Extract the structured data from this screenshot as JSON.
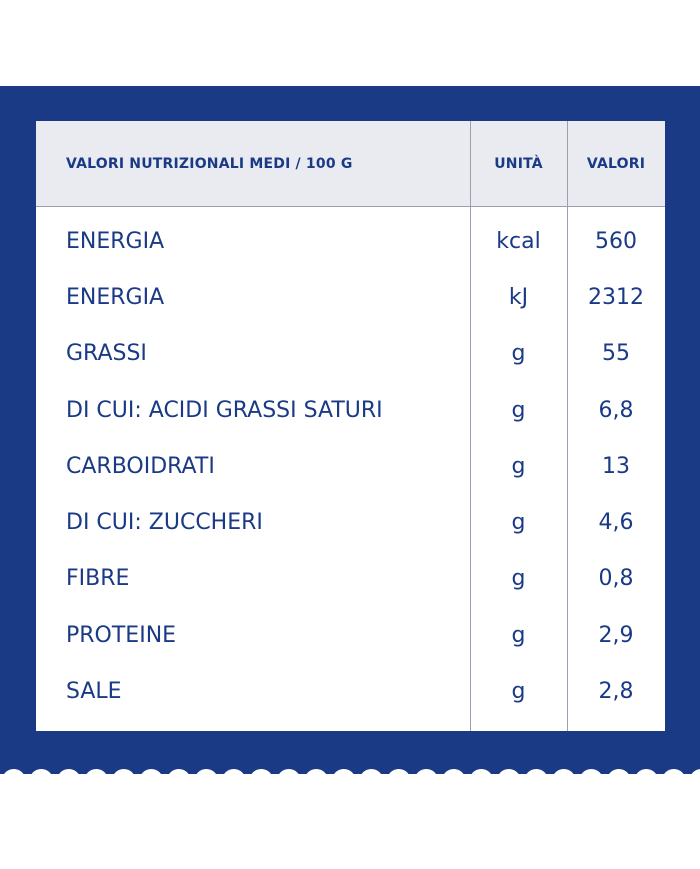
{
  "colors": {
    "brand_blue": "#1a3a86",
    "header_bg": "#e9ebf1",
    "background": "#ffffff"
  },
  "table": {
    "header": {
      "name": "VALORI NUTRIZIONALI MEDI / 100 G",
      "unit": "UNITÀ",
      "value": "VALORI"
    },
    "rows": [
      {
        "name": "ENERGIA",
        "unit": "kcal",
        "value": "560"
      },
      {
        "name": "ENERGIA",
        "unit": "kJ",
        "value": "2312"
      },
      {
        "name": "GRASSI",
        "unit": "g",
        "value": "55"
      },
      {
        "name": "DI CUI: ACIDI GRASSI SATURI",
        "unit": "g",
        "value": "6,8"
      },
      {
        "name": "CARBOIDRATI",
        "unit": "g",
        "value": "13"
      },
      {
        "name": "DI CUI: ZUCCHERI",
        "unit": "g",
        "value": "4,6"
      },
      {
        "name": "FIBRE",
        "unit": "g",
        "value": "0,8"
      },
      {
        "name": "PROTEINE",
        "unit": "g",
        "value": "2,9"
      },
      {
        "name": "SALE",
        "unit": "g",
        "value": "2,8"
      }
    ]
  }
}
